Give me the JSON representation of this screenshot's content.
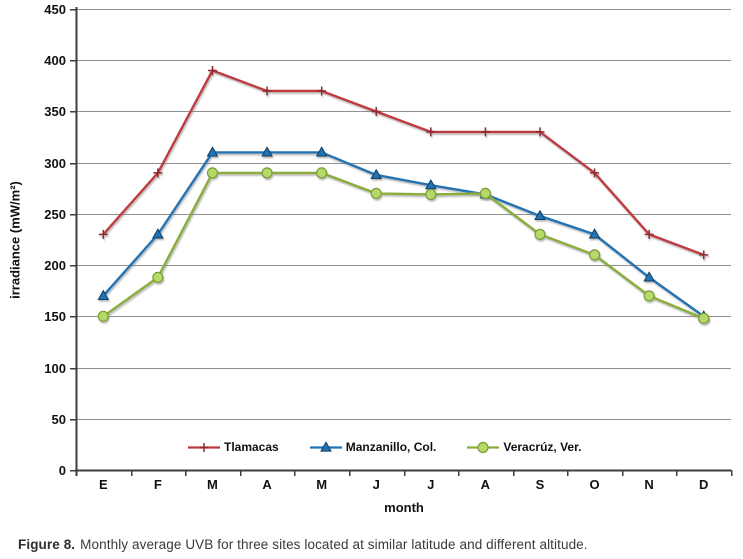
{
  "figure": {
    "caption_prefix": "Figure 8.",
    "caption_text": "Monthly average UVB for three sites located at similar latitude and different altitude."
  },
  "chart_data": {
    "type": "line",
    "title": "",
    "xlabel": "month",
    "ylabel": "irradiance (mW/m²)",
    "categories": [
      "E",
      "F",
      "M",
      "A",
      "M",
      "J",
      "J",
      "A",
      "S",
      "O",
      "N",
      "D"
    ],
    "ylim": [
      0,
      450
    ],
    "yticks": [
      0,
      50,
      100,
      150,
      200,
      250,
      300,
      350,
      400,
      450
    ],
    "grid": "horizontal",
    "legend_position": "bottom-inside",
    "series": [
      {
        "name": "Tlamacas",
        "color": "#c03a40",
        "marker": "plus",
        "marker_color": "#8e2a31",
        "values": [
          230,
          290,
          390,
          370,
          370,
          350,
          330,
          330,
          330,
          290,
          230,
          210
        ]
      },
      {
        "name": "Manzanillo, Col.",
        "color": "#2173b4",
        "marker": "triangle-up",
        "marker_color": "#0f3f66",
        "values": [
          170,
          230,
          310,
          310,
          310,
          288,
          278,
          269,
          248,
          230,
          188,
          150
        ]
      },
      {
        "name": "Veracrúz, Ver.",
        "color": "#8aad3b",
        "marker": "circle",
        "marker_fill": "#b5d968",
        "marker_color": "#7d9c39",
        "values": [
          150,
          188,
          290,
          290,
          290,
          270,
          269,
          270,
          230,
          210,
          170,
          148
        ]
      }
    ]
  },
  "colors": {
    "gridline": "#909090",
    "axis": "#3d3d3d",
    "tick_text": "#111111",
    "caption_text": "#3a3a3a"
  }
}
